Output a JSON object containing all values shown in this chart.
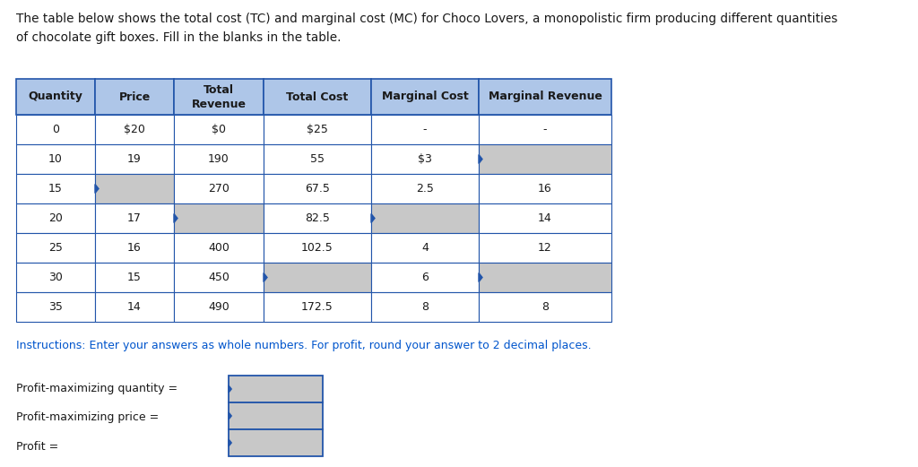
{
  "title_text": "The table below shows the total cost (TC) and marginal cost (MC) for Choco Lovers, a monopolistic firm producing different quantities\nof chocolate gift boxes. Fill in the blanks in the table.",
  "instructions": "Instructions: Enter your answers as whole numbers. For profit, round your answer to 2 decimal places.",
  "headers": [
    "Quantity",
    "Price",
    "Total\nRevenue",
    "Total Cost",
    "Marginal Cost",
    "Marginal Revenue"
  ],
  "rows": [
    [
      "0",
      "$20",
      "$0",
      "$25",
      "-",
      "-"
    ],
    [
      "10",
      "19",
      "190",
      "55",
      "$3",
      "BLANK"
    ],
    [
      "15",
      "BLANK",
      "270",
      "67.5",
      "2.5",
      "16"
    ],
    [
      "20",
      "17",
      "BLANK",
      "82.5",
      "BLANK",
      "14"
    ],
    [
      "25",
      "16",
      "400",
      "102.5",
      "4",
      "12"
    ],
    [
      "30",
      "15",
      "450",
      "BLANK",
      "6",
      "BLANK"
    ],
    [
      "35",
      "14",
      "490",
      "172.5",
      "8",
      "8"
    ]
  ],
  "header_bg": "#aec6e8",
  "blank_bg": "#c8c8c8",
  "white_bg": "#ffffff",
  "border_color": "#2255aa",
  "text_color": "#1a1a1a",
  "instructions_color": "#0055cc",
  "profit_labels": [
    "Profit-maximizing quantity =",
    "Profit-maximizing price =",
    "Profit ="
  ],
  "fig_width": 10.24,
  "fig_height": 5.21
}
